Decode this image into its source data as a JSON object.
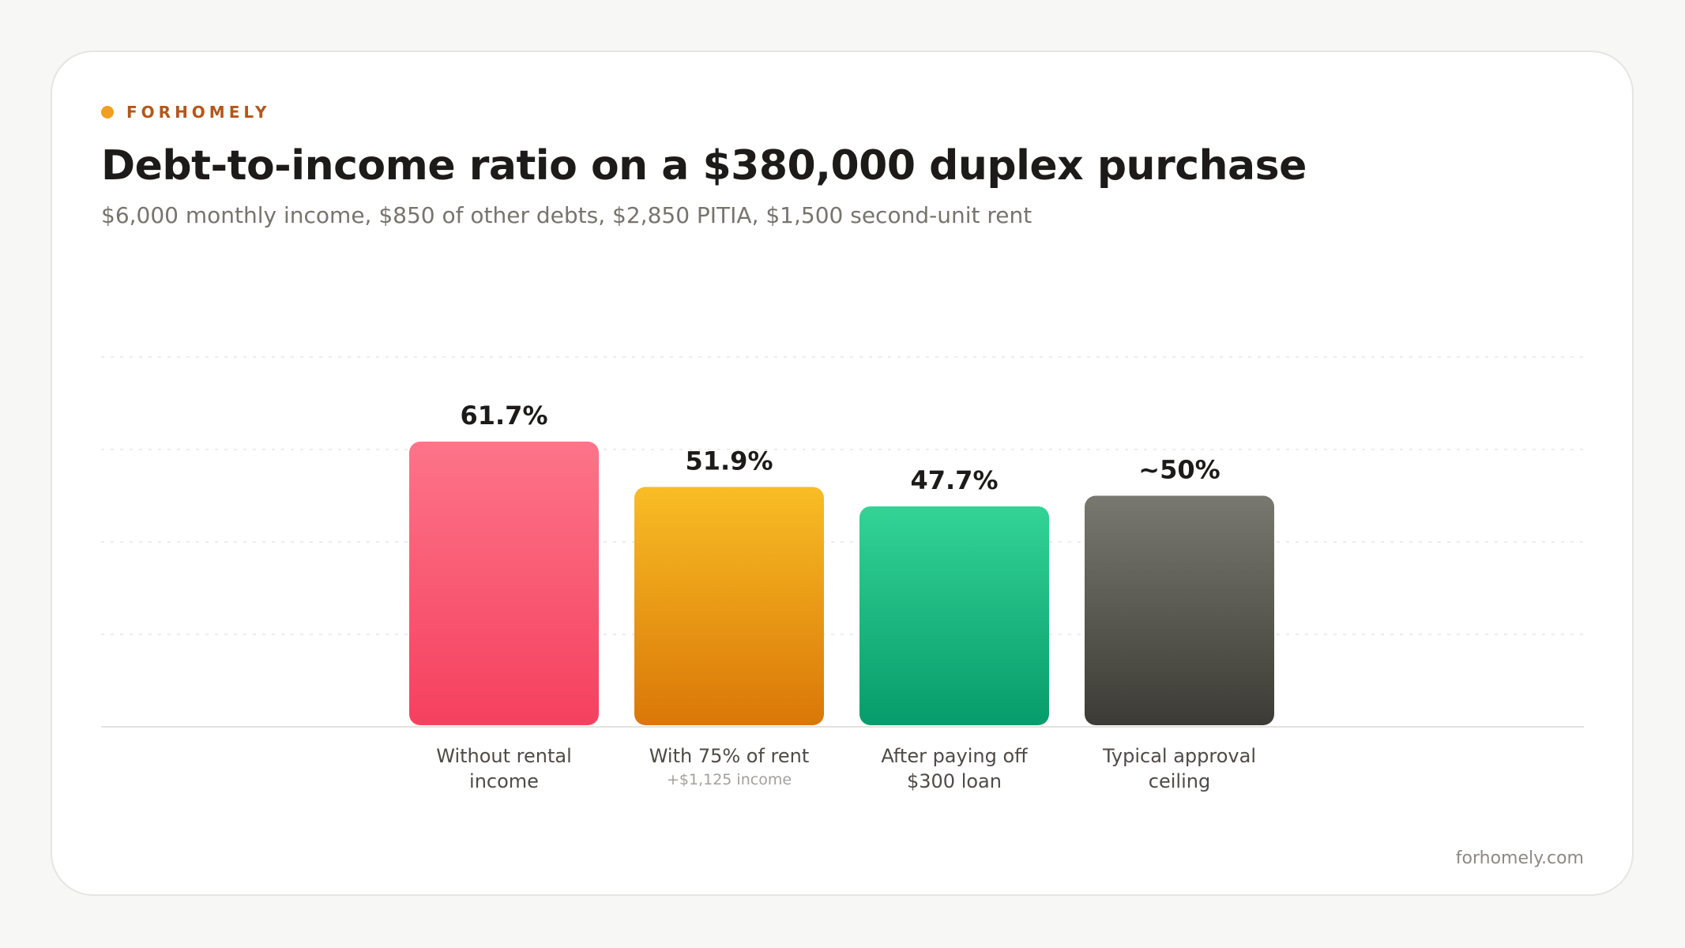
{
  "brand": {
    "name": "FORHOMELY",
    "accent_color": "#f0a020",
    "name_color": "#b4561a"
  },
  "header": {
    "title": "Debt-to-income ratio on a $380,000 duplex purchase",
    "subtitle": "$6,000 monthly income, $850 of other debts, $2,850 PITIA, $1,500 second-unit rent"
  },
  "footer": {
    "domain": "forhomely.com"
  },
  "chart_data": {
    "type": "bar",
    "categories": [
      [
        "Without rental",
        "income"
      ],
      [
        "With 75% of rent"
      ],
      [
        "After paying off",
        "$300 loan"
      ],
      [
        "Typical approval",
        "ceiling"
      ]
    ],
    "category_notes": [
      "",
      "+$1,125 income",
      "",
      ""
    ],
    "values": [
      61.7,
      51.9,
      47.7,
      50
    ],
    "value_labels": [
      "61.7%",
      "51.9%",
      "47.7%",
      "~50%"
    ],
    "colors": [
      [
        "#fd7489",
        "#f5405f"
      ],
      [
        "#f8bd25",
        "#da7707"
      ],
      [
        "#33d396",
        "#079c6b"
      ],
      [
        "#797870",
        "#3c3b35"
      ]
    ],
    "ylim": [
      0,
      80
    ],
    "grid": true
  }
}
